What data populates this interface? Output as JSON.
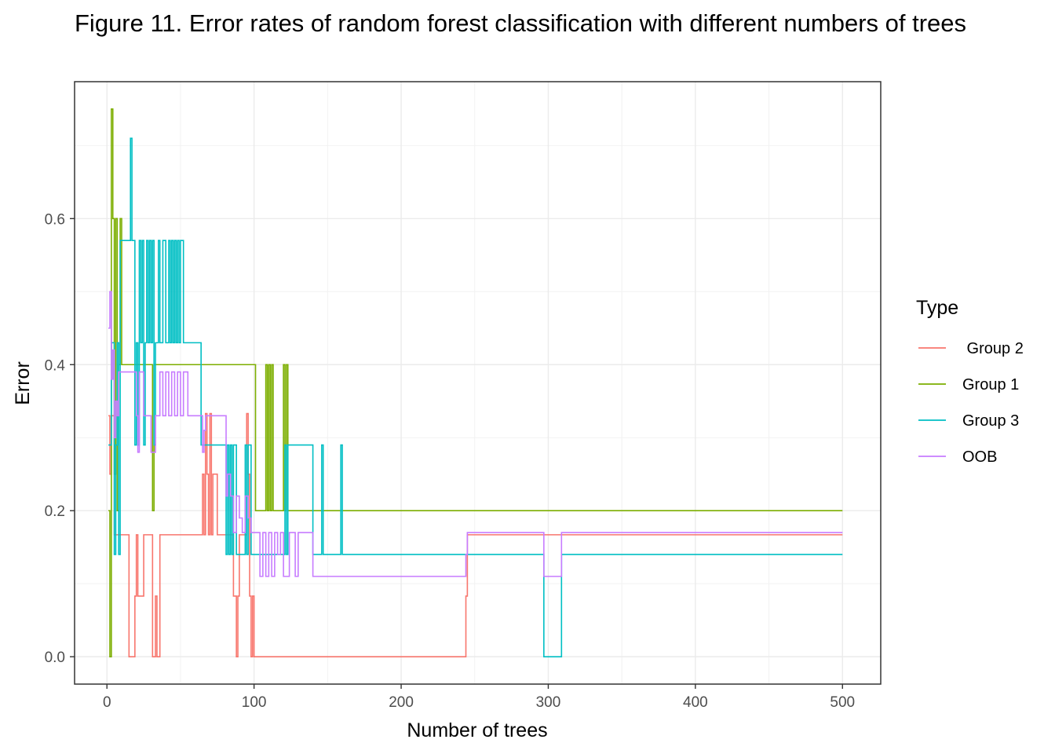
{
  "chart_data": {
    "type": "line",
    "title": "Figure 11. Error rates of random forest classification with different numbers of trees",
    "xlabel": "Number of trees",
    "ylabel": "Error",
    "xlim": [
      -22,
      526
    ],
    "ylim": [
      -0.0375,
      0.7875
    ],
    "x_ticks": [
      0,
      100,
      200,
      300,
      400,
      500
    ],
    "x_tick_labels": [
      "0",
      "100",
      "200",
      "300",
      "400",
      "500"
    ],
    "y_ticks": [
      0.0,
      0.2,
      0.4,
      0.6
    ],
    "y_tick_labels": [
      "0.0",
      "0.2",
      "0.4",
      "0.6"
    ],
    "grid": true,
    "legend": {
      "title": "Type",
      "position": "right"
    },
    "series": [
      {
        "name": " Group 2",
        "color": "#F8766D",
        "x": [
          1,
          2,
          3,
          5,
          8,
          14,
          15,
          18,
          19,
          20,
          21,
          25,
          30,
          31,
          33,
          34,
          35,
          36,
          40,
          45,
          50,
          60,
          65,
          66,
          67,
          68,
          69,
          70,
          71,
          72,
          75,
          85,
          86,
          88,
          89,
          90,
          95,
          96,
          97,
          98,
          99,
          100,
          110,
          150,
          200,
          244,
          245,
          250,
          298,
          300,
          305,
          309,
          310,
          320,
          400,
          500
        ],
        "values": [
          0.33,
          0.25,
          0.33,
          0.167,
          0.167,
          0.167,
          0.0,
          0.0,
          0.083,
          0.167,
          0.083,
          0.167,
          0.167,
          0.0,
          0.083,
          0.0,
          0.0,
          0.167,
          0.167,
          0.167,
          0.167,
          0.167,
          0.25,
          0.167,
          0.333,
          0.25,
          0.167,
          0.333,
          0.167,
          0.25,
          0.167,
          0.167,
          0.083,
          0.0,
          0.083,
          0.167,
          0.333,
          0.25,
          0.083,
          0.0,
          0.083,
          0.0,
          0.0,
          0.0,
          0.0,
          0.083,
          0.167,
          0.167,
          0.167,
          0.167,
          0.167,
          0.167,
          0.167,
          0.167,
          0.167,
          0.167
        ]
      },
      {
        "name": "Group 1",
        "color": "#7CAE00",
        "x": [
          1,
          2,
          3,
          4,
          5,
          6,
          7,
          8,
          9,
          10,
          11,
          12,
          20,
          25,
          30,
          31,
          32,
          33,
          40,
          60,
          80,
          90,
          100,
          101,
          102,
          103,
          105,
          108,
          109,
          110,
          111,
          112,
          113,
          115,
          118,
          120,
          121,
          122,
          123,
          125,
          130,
          150,
          200,
          300,
          400,
          500
        ],
        "values": [
          0.2,
          0.0,
          0.75,
          0.6,
          0.25,
          0.6,
          0.2,
          0.4,
          0.6,
          0.4,
          0.4,
          0.4,
          0.4,
          0.4,
          0.4,
          0.2,
          0.4,
          0.4,
          0.4,
          0.4,
          0.4,
          0.4,
          0.4,
          0.2,
          0.2,
          0.2,
          0.2,
          0.4,
          0.2,
          0.4,
          0.2,
          0.4,
          0.2,
          0.2,
          0.2,
          0.4,
          0.2,
          0.4,
          0.2,
          0.2,
          0.2,
          0.2,
          0.2,
          0.2,
          0.2,
          0.2
        ]
      },
      {
        "name": "Group 3",
        "color": "#00BFC4",
        "x": [
          1,
          3,
          5,
          6,
          7,
          8,
          9,
          10,
          11,
          15,
          16,
          17,
          18,
          19,
          20,
          21,
          22,
          23,
          24,
          25,
          26,
          27,
          28,
          29,
          30,
          31,
          32,
          33,
          34,
          35,
          36,
          37,
          38,
          40,
          42,
          43,
          44,
          45,
          46,
          47,
          48,
          49,
          50,
          51,
          52,
          53,
          55,
          60,
          64,
          65,
          66,
          67,
          70,
          75,
          80,
          81,
          82,
          83,
          84,
          85,
          86,
          88,
          90,
          93,
          94,
          95,
          96,
          98,
          100,
          110,
          120,
          121,
          122,
          123,
          124,
          125,
          127,
          130,
          135,
          140,
          145,
          146,
          147,
          150,
          155,
          158,
          159,
          160,
          170,
          200,
          250,
          296,
          297,
          300,
          305,
          308,
          309,
          310,
          320,
          400,
          500
        ],
        "values": [
          0.29,
          0.43,
          0.14,
          0.29,
          0.43,
          0.14,
          0.57,
          0.57,
          0.57,
          0.57,
          0.71,
          0.57,
          0.57,
          0.29,
          0.43,
          0.29,
          0.57,
          0.43,
          0.57,
          0.29,
          0.43,
          0.57,
          0.43,
          0.57,
          0.43,
          0.57,
          0.29,
          0.43,
          0.43,
          0.57,
          0.43,
          0.43,
          0.57,
          0.43,
          0.57,
          0.43,
          0.57,
          0.43,
          0.57,
          0.43,
          0.57,
          0.43,
          0.57,
          0.57,
          0.43,
          0.43,
          0.43,
          0.43,
          0.29,
          0.29,
          0.29,
          0.29,
          0.29,
          0.29,
          0.29,
          0.14,
          0.29,
          0.14,
          0.29,
          0.14,
          0.29,
          0.14,
          0.14,
          0.14,
          0.29,
          0.14,
          0.29,
          0.14,
          0.14,
          0.14,
          0.14,
          0.29,
          0.14,
          0.29,
          0.29,
          0.29,
          0.29,
          0.29,
          0.29,
          0.14,
          0.14,
          0.29,
          0.14,
          0.14,
          0.14,
          0.14,
          0.29,
          0.14,
          0.14,
          0.14,
          0.14,
          0.14,
          0.0,
          0.0,
          0.0,
          0.0,
          0.14,
          0.14,
          0.14,
          0.14,
          0.14
        ]
      },
      {
        "name": "OOB",
        "color": "#C77CFF",
        "x": [
          1,
          2,
          3,
          4,
          5,
          6,
          7,
          8,
          9,
          10,
          11,
          12,
          15,
          20,
          21,
          22,
          25,
          28,
          30,
          33,
          36,
          38,
          40,
          42,
          44,
          46,
          48,
          50,
          52,
          55,
          60,
          65,
          66,
          67,
          70,
          75,
          80,
          81,
          82,
          84,
          86,
          88,
          90,
          92,
          94,
          96,
          98,
          100,
          104,
          106,
          108,
          110,
          112,
          114,
          116,
          118,
          120,
          124,
          128,
          130,
          135,
          140,
          145,
          150,
          155,
          160,
          170,
          200,
          243,
          244,
          245,
          250,
          296,
          297,
          300,
          305,
          308,
          309,
          310,
          320,
          400,
          500
        ],
        "values": [
          0.45,
          0.5,
          0.38,
          0.42,
          0.3,
          0.35,
          0.33,
          0.39,
          0.39,
          0.39,
          0.39,
          0.39,
          0.39,
          0.33,
          0.28,
          0.39,
          0.33,
          0.33,
          0.28,
          0.33,
          0.39,
          0.33,
          0.39,
          0.33,
          0.39,
          0.33,
          0.39,
          0.33,
          0.39,
          0.33,
          0.33,
          0.28,
          0.31,
          0.33,
          0.33,
          0.33,
          0.33,
          0.22,
          0.25,
          0.22,
          0.17,
          0.22,
          0.19,
          0.17,
          0.22,
          0.19,
          0.17,
          0.17,
          0.11,
          0.17,
          0.11,
          0.17,
          0.11,
          0.17,
          0.14,
          0.17,
          0.11,
          0.17,
          0.11,
          0.17,
          0.17,
          0.11,
          0.11,
          0.11,
          0.11,
          0.11,
          0.11,
          0.11,
          0.11,
          0.14,
          0.17,
          0.17,
          0.17,
          0.11,
          0.11,
          0.11,
          0.11,
          0.17,
          0.17,
          0.17,
          0.17,
          0.17
        ]
      }
    ]
  }
}
